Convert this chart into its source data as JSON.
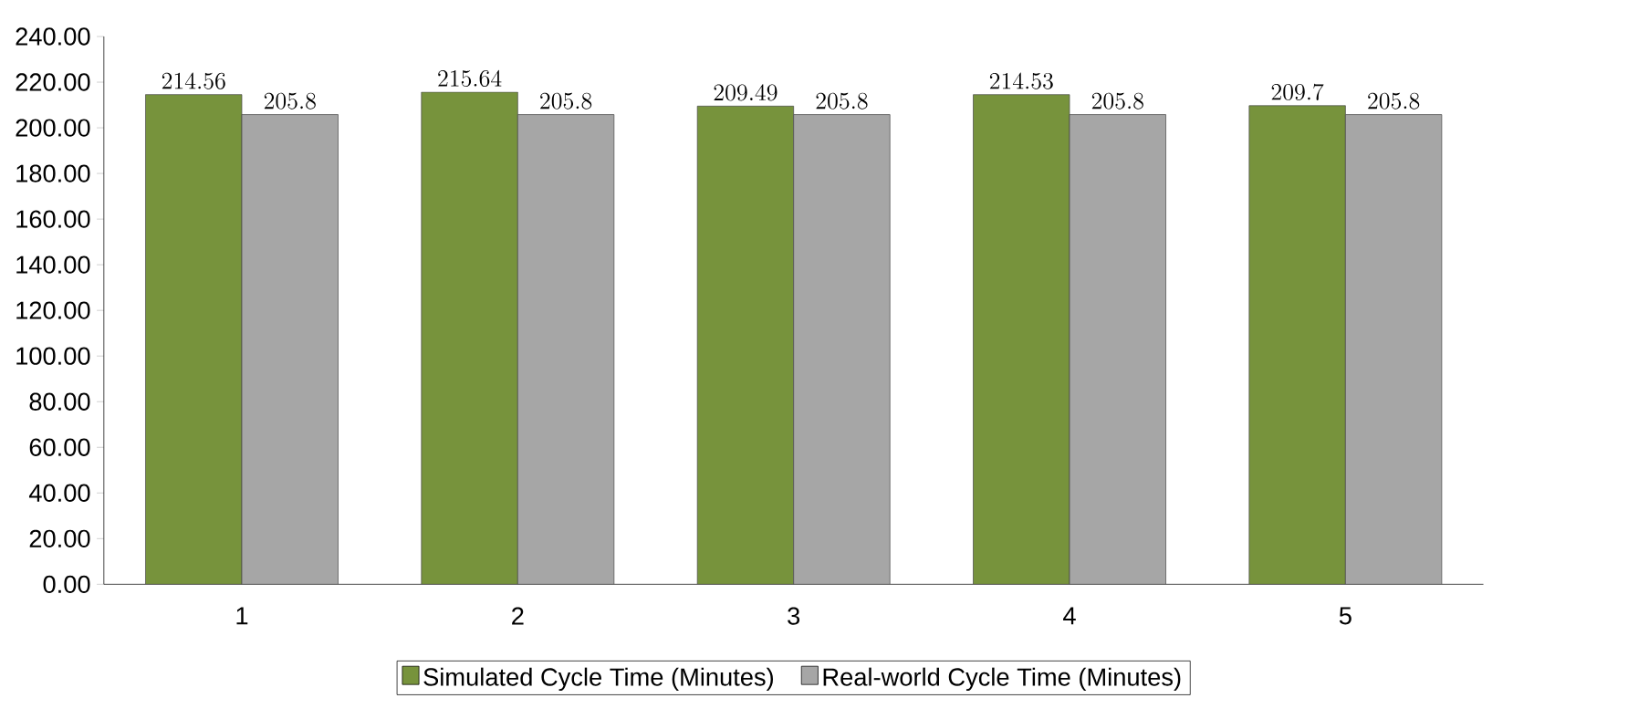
{
  "chart_data": {
    "type": "bar",
    "categories": [
      "1",
      "2",
      "3",
      "4",
      "5"
    ],
    "series": [
      {
        "name": "Simulated Cycle Time (Minutes)",
        "color": "#77933c",
        "values": [
          214.56,
          215.64,
          209.49,
          214.53,
          209.7
        ]
      },
      {
        "name": "Real-world Cycle Time (Minutes)",
        "color": "#a6a6a6",
        "values": [
          205.8,
          205.8,
          205.8,
          205.8,
          205.8
        ]
      }
    ],
    "ylim": [
      0,
      240
    ],
    "yticks": [
      {
        "value": 0,
        "label": "0.00"
      },
      {
        "value": 20,
        "label": "20.00"
      },
      {
        "value": 40,
        "label": "40.00"
      },
      {
        "value": 60,
        "label": "60.00"
      },
      {
        "value": 80,
        "label": "80.00"
      },
      {
        "value": 100,
        "label": "100.00"
      },
      {
        "value": 120,
        "label": "120.00"
      },
      {
        "value": 140,
        "label": "140.00"
      },
      {
        "value": 160,
        "label": "160.00"
      },
      {
        "value": 180,
        "label": "180.00"
      },
      {
        "value": 200,
        "label": "200.00"
      },
      {
        "value": 220,
        "label": "220.00"
      },
      {
        "value": 240,
        "label": "240.00"
      }
    ],
    "data_labels": true,
    "legend": "bottom",
    "grid": false
  }
}
